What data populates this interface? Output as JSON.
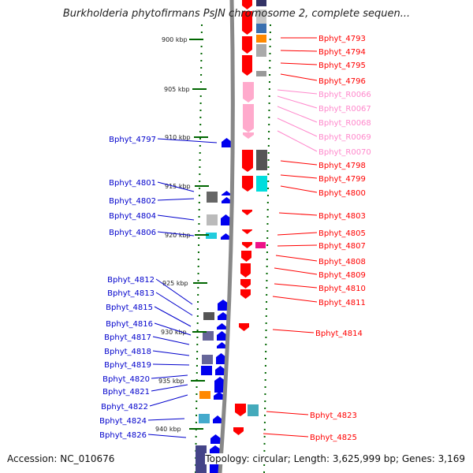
{
  "title": "Burkholderia phytofirmans PsJN chromosome 2, complete sequen...",
  "accession": "Accession: NC_010676",
  "topology": "Topology: circular; Length: 3,625,999 bp; Genes: 3,169",
  "colors": {
    "forward_label": "#ff0000",
    "reverse_label": "#0000cc",
    "rna_label": "#ff88cc",
    "ticks": "#006600",
    "backbone": "#888888"
  },
  "kbp_ticks": [
    {
      "label": "900 kbp"
    },
    {
      "label": "905 kbp"
    },
    {
      "label": "910 kbp"
    },
    {
      "label": "915 kbp"
    },
    {
      "label": "920 kbp"
    },
    {
      "label": "925 kbp"
    },
    {
      "label": "930 kbp"
    },
    {
      "label": "935 kbp"
    },
    {
      "label": "940 kbp"
    }
  ],
  "forward_genes": [
    {
      "name": "Bphyt_4793",
      "type": "cds"
    },
    {
      "name": "Bphyt_4794",
      "type": "cds"
    },
    {
      "name": "Bphyt_4795",
      "type": "cds"
    },
    {
      "name": "Bphyt_4796",
      "type": "cds"
    },
    {
      "name": "Bphyt_R0066",
      "type": "rna"
    },
    {
      "name": "Bphyt_R0067",
      "type": "rna"
    },
    {
      "name": "Bphyt_R0068",
      "type": "rna"
    },
    {
      "name": "Bphyt_R0069",
      "type": "rna"
    },
    {
      "name": "Bphyt_R0070",
      "type": "rna"
    },
    {
      "name": "Bphyt_4798",
      "type": "cds"
    },
    {
      "name": "Bphyt_4799",
      "type": "cds"
    },
    {
      "name": "Bphyt_4800",
      "type": "cds"
    },
    {
      "name": "Bphyt_4803",
      "type": "cds"
    },
    {
      "name": "Bphyt_4805",
      "type": "cds"
    },
    {
      "name": "Bphyt_4807",
      "type": "cds"
    },
    {
      "name": "Bphyt_4808",
      "type": "cds"
    },
    {
      "name": "Bphyt_4809",
      "type": "cds"
    },
    {
      "name": "Bphyt_4810",
      "type": "cds"
    },
    {
      "name": "Bphyt_4811",
      "type": "cds"
    },
    {
      "name": "Bphyt_4814",
      "type": "cds"
    },
    {
      "name": "Bphyt_4823",
      "type": "cds"
    },
    {
      "name": "Bphyt_4825",
      "type": "cds"
    }
  ],
  "reverse_genes": [
    {
      "name": "Bphyt_4797"
    },
    {
      "name": "Bphyt_4801"
    },
    {
      "name": "Bphyt_4802"
    },
    {
      "name": "Bphyt_4804"
    },
    {
      "name": "Bphyt_4806"
    },
    {
      "name": "Bphyt_4812"
    },
    {
      "name": "Bphyt_4813"
    },
    {
      "name": "Bphyt_4815"
    },
    {
      "name": "Bphyt_4816"
    },
    {
      "name": "Bphyt_4817"
    },
    {
      "name": "Bphyt_4818"
    },
    {
      "name": "Bphyt_4819"
    },
    {
      "name": "Bphyt_4820"
    },
    {
      "name": "Bphyt_4821"
    },
    {
      "name": "Bphyt_4822"
    },
    {
      "name": "Bphyt_4824"
    },
    {
      "name": "Bphyt_4826"
    }
  ]
}
